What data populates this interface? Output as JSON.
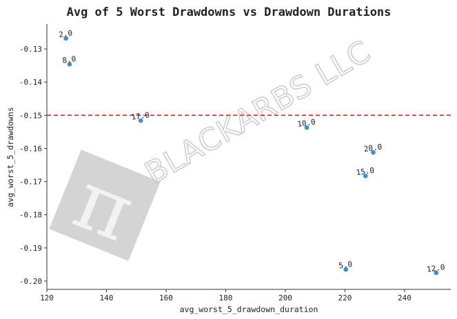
{
  "chart_data": {
    "type": "scatter",
    "title": "Avg of 5 Worst Drawdowns vs Drawdown Durations",
    "xlabel": "avg_worst_5_drawdown_duration",
    "ylabel": "avg_worst_5_drawdowns",
    "xlim": [
      120,
      255.5
    ],
    "ylim": [
      -0.2025,
      -0.1225
    ],
    "xticks": [
      120,
      140,
      160,
      180,
      200,
      220,
      240
    ],
    "yticks": [
      -0.13,
      -0.14,
      -0.15,
      -0.16,
      -0.17,
      -0.18,
      -0.19,
      -0.2
    ],
    "ytick_labels": [
      "-0.13",
      "-0.14",
      "-0.15",
      "-0.16",
      "-0.17",
      "-0.18",
      "-0.19",
      "-0.20"
    ],
    "points": [
      {
        "label": "2.0",
        "x": 126.4,
        "y": -0.1268
      },
      {
        "label": "8.0",
        "x": 127.6,
        "y": -0.1346
      },
      {
        "label": "17.0",
        "x": 151.5,
        "y": -0.1516
      },
      {
        "label": "10.0",
        "x": 207.2,
        "y": -0.1537
      },
      {
        "label": "20.0",
        "x": 229.5,
        "y": -0.1612
      },
      {
        "label": "15.0",
        "x": 226.9,
        "y": -0.1683
      },
      {
        "label": "5.0",
        "x": 220.3,
        "y": -0.1965
      },
      {
        "label": "12.0",
        "x": 250.6,
        "y": -0.1975
      }
    ],
    "reference_line": {
      "y": -0.15,
      "color": "#e31a1c",
      "style": "dashed"
    },
    "marker_color": "#3a8fd0",
    "grid": false,
    "watermark": {
      "text": "BLACKARBS LLC",
      "symbol": "π",
      "color": "#c8c8c8"
    }
  }
}
